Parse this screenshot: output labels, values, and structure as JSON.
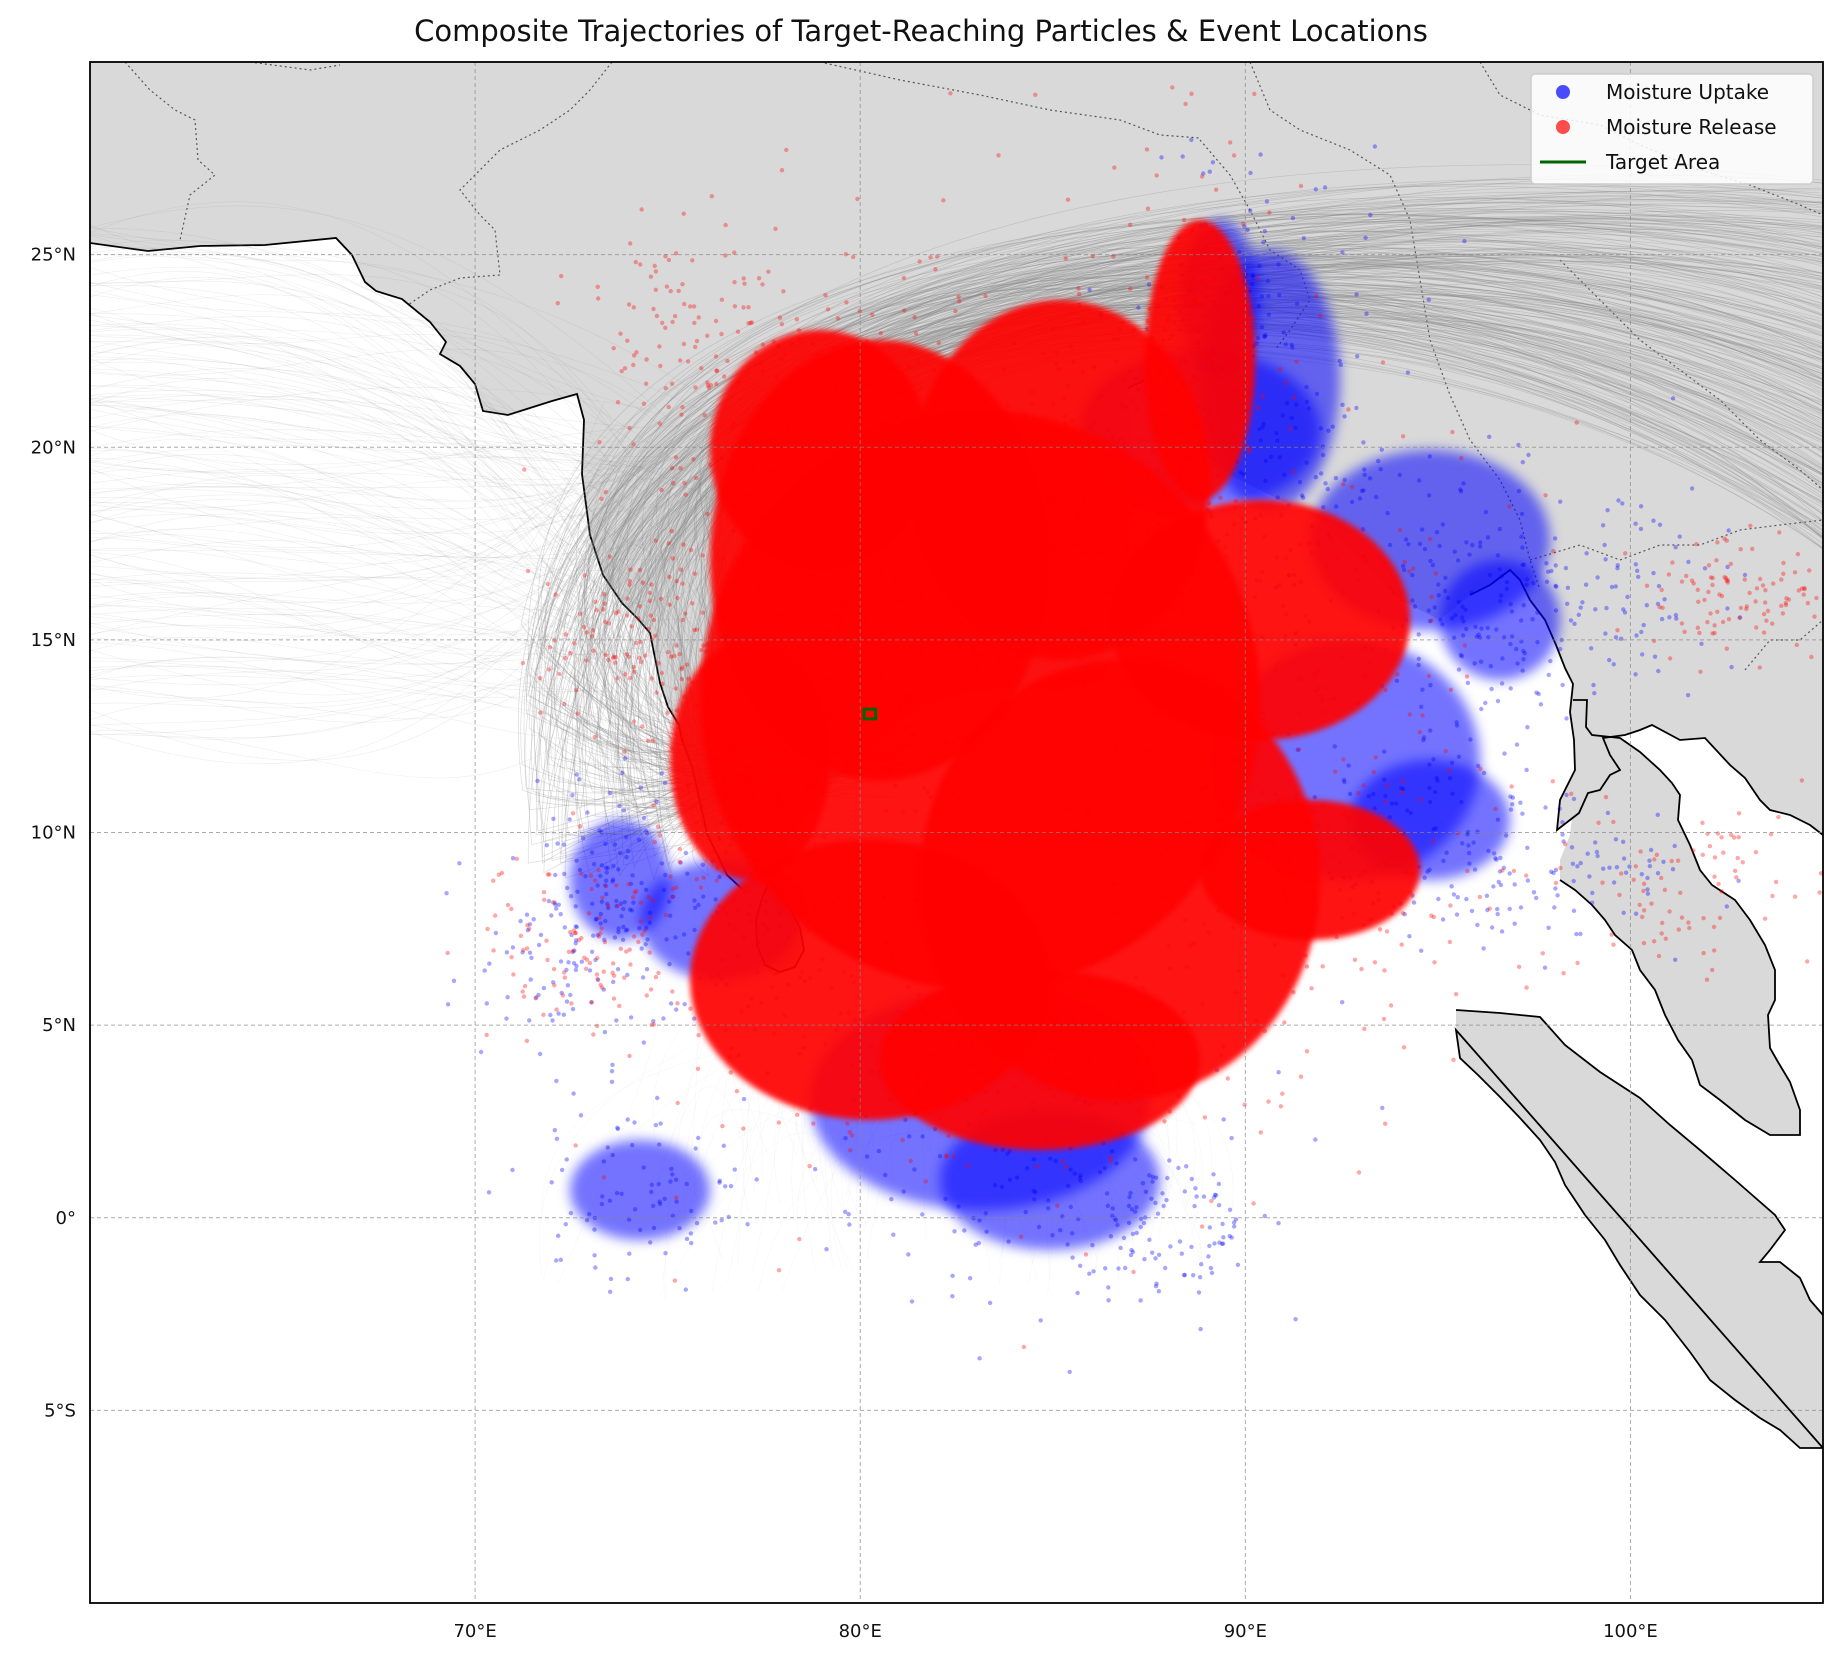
{
  "title": "Composite Trajectories of Target-Reaching Particles & Event Locations",
  "chart_data": {
    "type": "map-scatter",
    "projection": "PlateCarree",
    "extent": {
      "lon": [
        60,
        105
      ],
      "lat": [
        -10,
        30
      ]
    },
    "gridlines": true,
    "x_ticks": [
      70,
      80,
      90,
      100
    ],
    "x_tick_labels": [
      "70°E",
      "80°E",
      "90°E",
      "100°E"
    ],
    "y_ticks": [
      25,
      20,
      15,
      10,
      5,
      0,
      -5
    ],
    "y_tick_labels": [
      "25°N",
      "20°N",
      "15°N",
      "10°N",
      "5°N",
      "0°",
      "5°S"
    ],
    "land_color": "#d9d9d9",
    "ocean_color": "#ffffff",
    "trajectory_color": "#808080",
    "legend_position": "top-right",
    "series": [
      {
        "name": "Moisture Uptake",
        "color": "#0000ff",
        "marker": "dot"
      },
      {
        "name": "Moisture Release",
        "color": "#ff0000",
        "marker": "dot"
      },
      {
        "name": "Target Area",
        "color": "#006400",
        "marker": "line"
      }
    ],
    "target_area": {
      "lon": [
        80.1,
        80.4
      ],
      "lat": [
        12.95,
        13.2
      ]
    }
  }
}
